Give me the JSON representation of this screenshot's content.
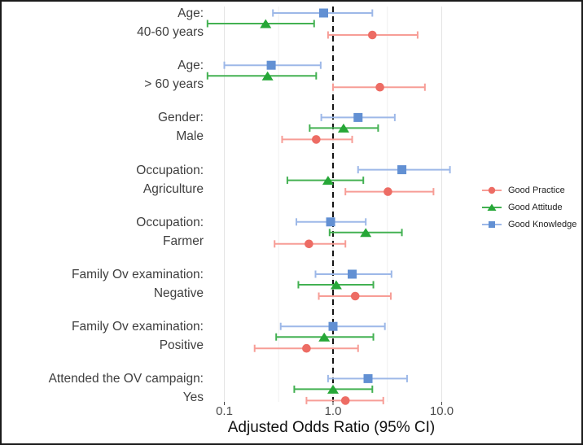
{
  "figure": {
    "background": "#ffffff",
    "border_color": "#1a1a1a"
  },
  "text_colors": {
    "category_labels": "#3f3f3f",
    "tick_labels": "#4d4d4d",
    "axis_title": "#111111",
    "legend_text": "#222222"
  },
  "chart_data": {
    "type": "scatter",
    "variant": "forest-plot-with-95ci-error-bars",
    "title": "",
    "xlabel": "Adjusted Odds Ratio (95% CI)",
    "ylabel": "",
    "x_scale": "log10",
    "xlim": [
      0.06,
      14
    ],
    "x_ticks": [
      0.1,
      1.0,
      10.0
    ],
    "x_tick_labels": [
      "0.1",
      "1.0",
      "10.0"
    ],
    "x_minor_ticks": [
      0.316,
      3.16
    ],
    "reference_line_x": 1.0,
    "reference_line_style": "black-dashed",
    "grid": "vertical-only",
    "legend_position": "right",
    "categories": [
      {
        "line1": "Age:",
        "line2": "40-60 years"
      },
      {
        "line1": "Age:",
        "line2": "> 60 years"
      },
      {
        "line1": "Gender:",
        "line2": "Male"
      },
      {
        "line1": "Occupation:",
        "line2": "Agriculture"
      },
      {
        "line1": "Occupation:",
        "line2": "Farmer"
      },
      {
        "line1": "Family Ov examination:",
        "line2": "Negative"
      },
      {
        "line1": "Family Ov examination:",
        "line2": "Positive"
      },
      {
        "line1": "Attended the OV campaign:",
        "line2": "Yes"
      }
    ],
    "series": [
      {
        "name": "Good Practice",
        "marker": "circle",
        "point_color": "#ed6c64",
        "line_color": "#f79d96",
        "or": [
          2.3,
          2.7,
          0.7,
          3.2,
          0.6,
          1.6,
          0.57,
          1.3
        ],
        "ci_low": [
          0.9,
          1.0,
          0.34,
          1.3,
          0.29,
          0.74,
          0.19,
          0.57
        ],
        "ci_high": [
          6.0,
          7.0,
          1.5,
          8.4,
          1.3,
          3.4,
          1.7,
          2.9
        ]
      },
      {
        "name": "Good Attitude",
        "marker": "triangle",
        "point_color": "#26a737",
        "line_color": "#43b152",
        "or": [
          0.24,
          0.25,
          1.25,
          0.9,
          2.0,
          1.07,
          0.83,
          1.0
        ],
        "ci_low": [
          0.07,
          0.07,
          0.61,
          0.38,
          0.93,
          0.48,
          0.3,
          0.44
        ],
        "ci_high": [
          0.67,
          0.7,
          2.6,
          1.9,
          4.3,
          2.35,
          2.35,
          2.3
        ]
      },
      {
        "name": "Good Knowledge",
        "marker": "square",
        "point_color": "#6290d3",
        "line_color": "#9db8e8",
        "or": [
          0.82,
          0.27,
          1.7,
          4.3,
          0.95,
          1.5,
          1.0,
          2.1
        ],
        "ci_low": [
          0.28,
          0.1,
          0.78,
          1.7,
          0.46,
          0.69,
          0.33,
          0.9
        ],
        "ci_high": [
          2.3,
          0.77,
          3.7,
          11.9,
          2.0,
          3.45,
          3.0,
          4.8
        ]
      }
    ]
  }
}
